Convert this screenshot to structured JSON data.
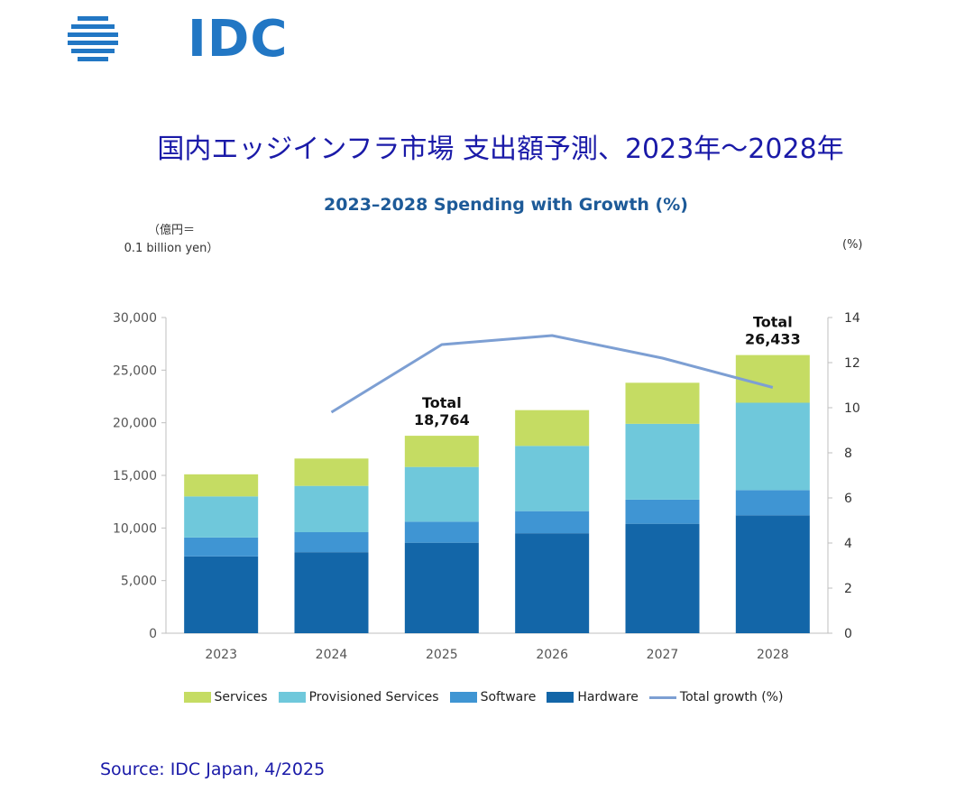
{
  "logo": {
    "text": "IDC"
  },
  "header": {
    "title": "国内エッジインフラ市場 支出額予測、2023年～2028年"
  },
  "chart_data": {
    "type": "bar",
    "stacked": true,
    "title": "2023–2028 Spending with Growth (%)",
    "ylabel_left": "（億円＝\n0.1 billion yen）",
    "ylabel_right": "(%)",
    "categories": [
      "2023",
      "2024",
      "2025",
      "2026",
      "2027",
      "2028"
    ],
    "series": [
      {
        "name": "Hardware",
        "color": "#1366a8",
        "values": [
          7300,
          7700,
          8600,
          9500,
          10400,
          11200
        ]
      },
      {
        "name": "Software",
        "color": "#3f95d3",
        "values": [
          1800,
          1900,
          2000,
          2100,
          2300,
          2400
        ]
      },
      {
        "name": "Provisioned Services",
        "color": "#6fc8db",
        "values": [
          3900,
          4400,
          5200,
          6200,
          7200,
          8300
        ]
      },
      {
        "name": "Services",
        "color": "#c5dc63",
        "values": [
          2100,
          2600,
          2964,
          3400,
          3900,
          4533
        ]
      }
    ],
    "line_series": {
      "name": "Total growth (%)",
      "color": "#7d9fd3",
      "values": [
        null,
        9.8,
        12.8,
        13.2,
        12.2,
        10.9
      ]
    },
    "ylim_left": [
      0,
      30000
    ],
    "yticks_left": [
      "0",
      "5,000",
      "10,000",
      "15,000",
      "20,000",
      "25,000",
      "30,000"
    ],
    "ylim_right": [
      0,
      14
    ],
    "yticks_right": [
      "0",
      "2",
      "4",
      "6",
      "8",
      "10",
      "12",
      "14"
    ],
    "annotations": [
      {
        "category": "2025",
        "label": "Total",
        "value": "18,764"
      },
      {
        "category": "2028",
        "label": "Total",
        "value": "26,433"
      }
    ],
    "legend": [
      "Services",
      "Provisioned Services",
      "Software",
      "Hardware",
      "Total growth (%)"
    ]
  },
  "footer": {
    "source": "Source: IDC Japan, 4/2025"
  }
}
